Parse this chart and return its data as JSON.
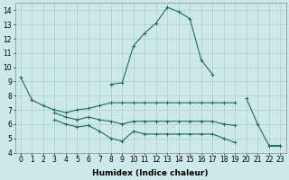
{
  "xlabel": "Humidex (Indice chaleur)",
  "x_values": [
    0,
    1,
    2,
    3,
    4,
    5,
    6,
    7,
    8,
    9,
    10,
    11,
    12,
    13,
    14,
    15,
    16,
    17,
    18,
    19,
    20,
    21,
    22,
    23
  ],
  "lines": [
    {
      "y": [
        9.3,
        7.7,
        null,
        null,
        null,
        null,
        null,
        null,
        8.8,
        8.9,
        11.5,
        12.4,
        13.1,
        14.2,
        13.9,
        13.4,
        10.5,
        9.5,
        null,
        null,
        7.8,
        6.0,
        4.5,
        4.5
      ]
    },
    {
      "y": [
        null,
        7.7,
        7.3,
        7.0,
        6.8,
        7.0,
        7.1,
        7.3,
        7.5,
        7.5,
        7.5,
        7.5,
        7.5,
        7.5,
        7.5,
        7.5,
        7.5,
        7.5,
        7.5,
        7.5,
        null,
        null,
        null,
        null
      ]
    },
    {
      "y": [
        null,
        null,
        null,
        6.8,
        6.5,
        6.3,
        6.5,
        6.3,
        6.2,
        6.0,
        6.2,
        6.2,
        6.2,
        6.2,
        6.2,
        6.2,
        6.2,
        6.2,
        6.0,
        5.9,
        null,
        null,
        null,
        null
      ]
    },
    {
      "y": [
        null,
        null,
        null,
        6.3,
        6.0,
        5.8,
        5.9,
        5.5,
        5.0,
        4.8,
        5.5,
        5.3,
        5.3,
        5.3,
        5.3,
        5.3,
        5.3,
        5.3,
        5.0,
        4.7,
        null,
        null,
        null,
        null
      ]
    },
    {
      "y": [
        null,
        null,
        null,
        null,
        null,
        null,
        null,
        null,
        null,
        null,
        null,
        null,
        null,
        null,
        null,
        null,
        null,
        null,
        null,
        null,
        null,
        null,
        4.5,
        4.5
      ]
    }
  ],
  "ylim_min": 4,
  "ylim_max": 14.5,
  "xlim_min": -0.5,
  "xlim_max": 23.5,
  "yticks": [
    4,
    5,
    6,
    7,
    8,
    9,
    10,
    11,
    12,
    13,
    14
  ],
  "xticks": [
    0,
    1,
    2,
    3,
    4,
    5,
    6,
    7,
    8,
    9,
    10,
    11,
    12,
    13,
    14,
    15,
    16,
    17,
    18,
    19,
    20,
    21,
    22,
    23
  ],
  "bg_color": "#cde8e8",
  "grid_color": "#aacfcf",
  "line_color": "#1e6b5e",
  "tick_fontsize": 5.5,
  "xlabel_fontsize": 6.5,
  "linewidth": 0.8,
  "markersize": 2.5,
  "markeredgewidth": 0.7
}
